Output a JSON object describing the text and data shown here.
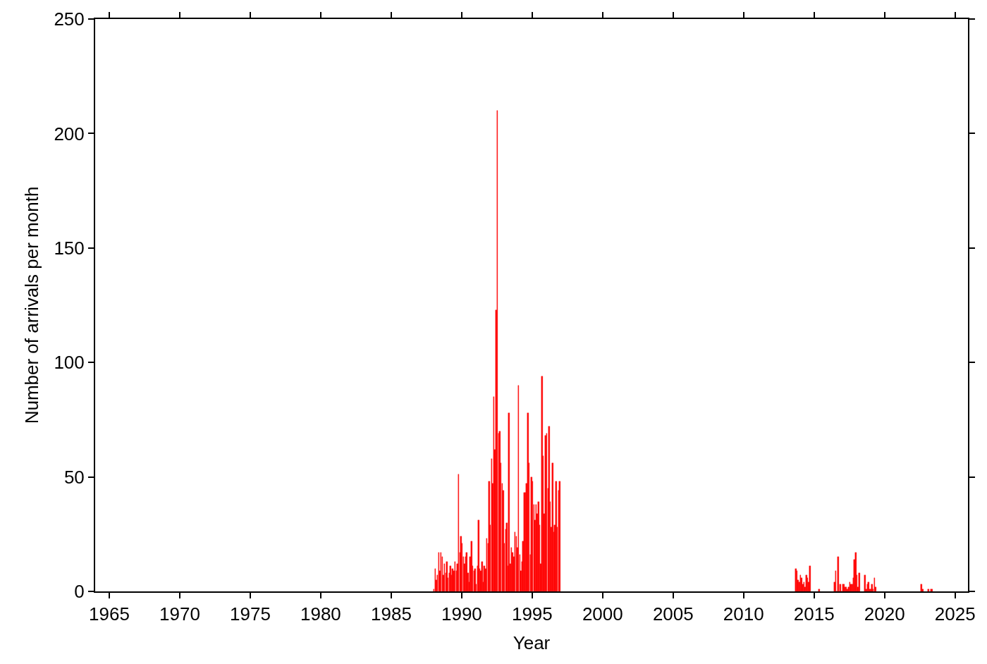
{
  "chart_data": {
    "type": "bar",
    "xlabel": "Year",
    "ylabel": "Number of arrivals per month",
    "x": [
      "1988-01",
      "1988-02",
      "1988-03",
      "1988-04",
      "1988-05",
      "1988-06",
      "1988-07",
      "1988-08",
      "1988-09",
      "1988-10",
      "1988-11",
      "1988-12",
      "1989-01",
      "1989-02",
      "1989-03",
      "1989-04",
      "1989-05",
      "1989-06",
      "1989-07",
      "1989-08",
      "1989-09",
      "1989-10",
      "1989-11",
      "1989-12",
      "1990-01",
      "1990-02",
      "1990-03",
      "1990-04",
      "1990-05",
      "1990-06",
      "1990-07",
      "1990-08",
      "1990-09",
      "1990-10",
      "1990-11",
      "1990-12",
      "1991-01",
      "1991-02",
      "1991-03",
      "1991-04",
      "1991-05",
      "1991-06",
      "1991-07",
      "1991-08",
      "1991-09",
      "1991-10",
      "1991-11",
      "1991-12",
      "1992-01",
      "1992-02",
      "1992-03",
      "1992-04",
      "1992-05",
      "1992-06",
      "1992-07",
      "1992-08",
      "1992-09",
      "1992-10",
      "1992-11",
      "1992-12",
      "1993-01",
      "1993-02",
      "1993-03",
      "1993-04",
      "1993-05",
      "1993-06",
      "1993-07",
      "1993-08",
      "1993-09",
      "1993-10",
      "1993-11",
      "1993-12",
      "1994-01",
      "1994-02",
      "1994-03",
      "1994-04",
      "1994-05",
      "1994-06",
      "1994-07",
      "1994-08",
      "1994-09",
      "1994-10",
      "1994-11",
      "1994-12",
      "1995-01",
      "1995-02",
      "1995-03",
      "1995-04",
      "1995-05",
      "1995-06",
      "1995-07",
      "1995-08",
      "1995-09",
      "1995-10",
      "1995-11",
      "1995-12",
      "1996-01",
      "1996-02",
      "1996-03",
      "1996-04",
      "1996-05",
      "1996-06",
      "1996-07",
      "1996-08",
      "1996-09",
      "1996-10",
      "1996-11",
      "1996-12",
      "2013-09",
      "2013-10",
      "2013-11",
      "2013-12",
      "2014-01",
      "2014-02",
      "2014-03",
      "2014-04",
      "2014-05",
      "2014-06",
      "2014-07",
      "2014-08",
      "2014-09",
      "2015-05",
      "2016-06",
      "2016-07",
      "2016-08",
      "2016-09",
      "2016-10",
      "2016-11",
      "2016-12",
      "2017-01",
      "2017-02",
      "2017-03",
      "2017-04",
      "2017-05",
      "2017-06",
      "2017-07",
      "2017-08",
      "2017-09",
      "2017-10",
      "2017-11",
      "2017-12",
      "2018-01",
      "2018-02",
      "2018-03",
      "2018-08",
      "2018-09",
      "2018-10",
      "2018-11",
      "2018-12",
      "2019-01",
      "2019-02",
      "2019-03",
      "2019-04",
      "2019-05",
      "2022-08",
      "2022-09",
      "2023-02",
      "2023-04",
      "2023-05"
    ],
    "values": [
      1,
      10,
      5,
      7,
      17,
      9,
      17,
      15,
      7,
      12,
      8,
      13,
      6,
      8,
      11,
      7,
      10,
      9,
      13,
      9,
      12,
      51,
      17,
      24,
      21,
      15,
      12,
      15,
      17,
      8,
      4,
      15,
      22,
      11,
      9,
      10,
      3,
      11,
      31,
      10,
      9,
      13,
      4,
      11,
      10,
      23,
      21,
      48,
      29,
      58,
      47,
      85,
      62,
      123,
      210,
      69,
      70,
      56,
      47,
      44,
      21,
      27,
      30,
      11,
      78,
      12,
      19,
      17,
      15,
      26,
      24,
      19,
      90,
      16,
      9,
      13,
      22,
      43,
      43,
      47,
      78,
      56,
      16,
      50,
      48,
      38,
      31,
      38,
      34,
      39,
      29,
      12,
      94,
      59,
      34,
      68,
      69,
      45,
      72,
      39,
      28,
      56,
      26,
      29,
      48,
      28,
      44,
      48,
      10,
      9,
      5,
      4,
      7,
      6,
      3,
      4,
      2,
      7,
      6,
      4,
      11,
      1,
      4,
      9,
      0,
      15,
      0,
      3,
      0,
      3,
      3,
      2,
      2,
      1,
      2,
      4,
      3,
      3,
      6,
      14,
      17,
      7,
      2,
      8,
      7,
      1,
      3,
      4,
      1,
      1,
      3,
      1,
      6,
      2,
      3,
      1,
      1,
      1,
      1
    ],
    "color": "#ff0000",
    "xlim": [
      "1964-01",
      "2025-12"
    ],
    "xticks": [
      "1965",
      "1970",
      "1975",
      "1980",
      "1985",
      "1990",
      "1995",
      "2000",
      "2005",
      "2010",
      "2015",
      "2020",
      "2025"
    ],
    "ylim": [
      0,
      250
    ],
    "yticks": [
      0,
      50,
      100,
      150,
      200,
      250
    ]
  }
}
